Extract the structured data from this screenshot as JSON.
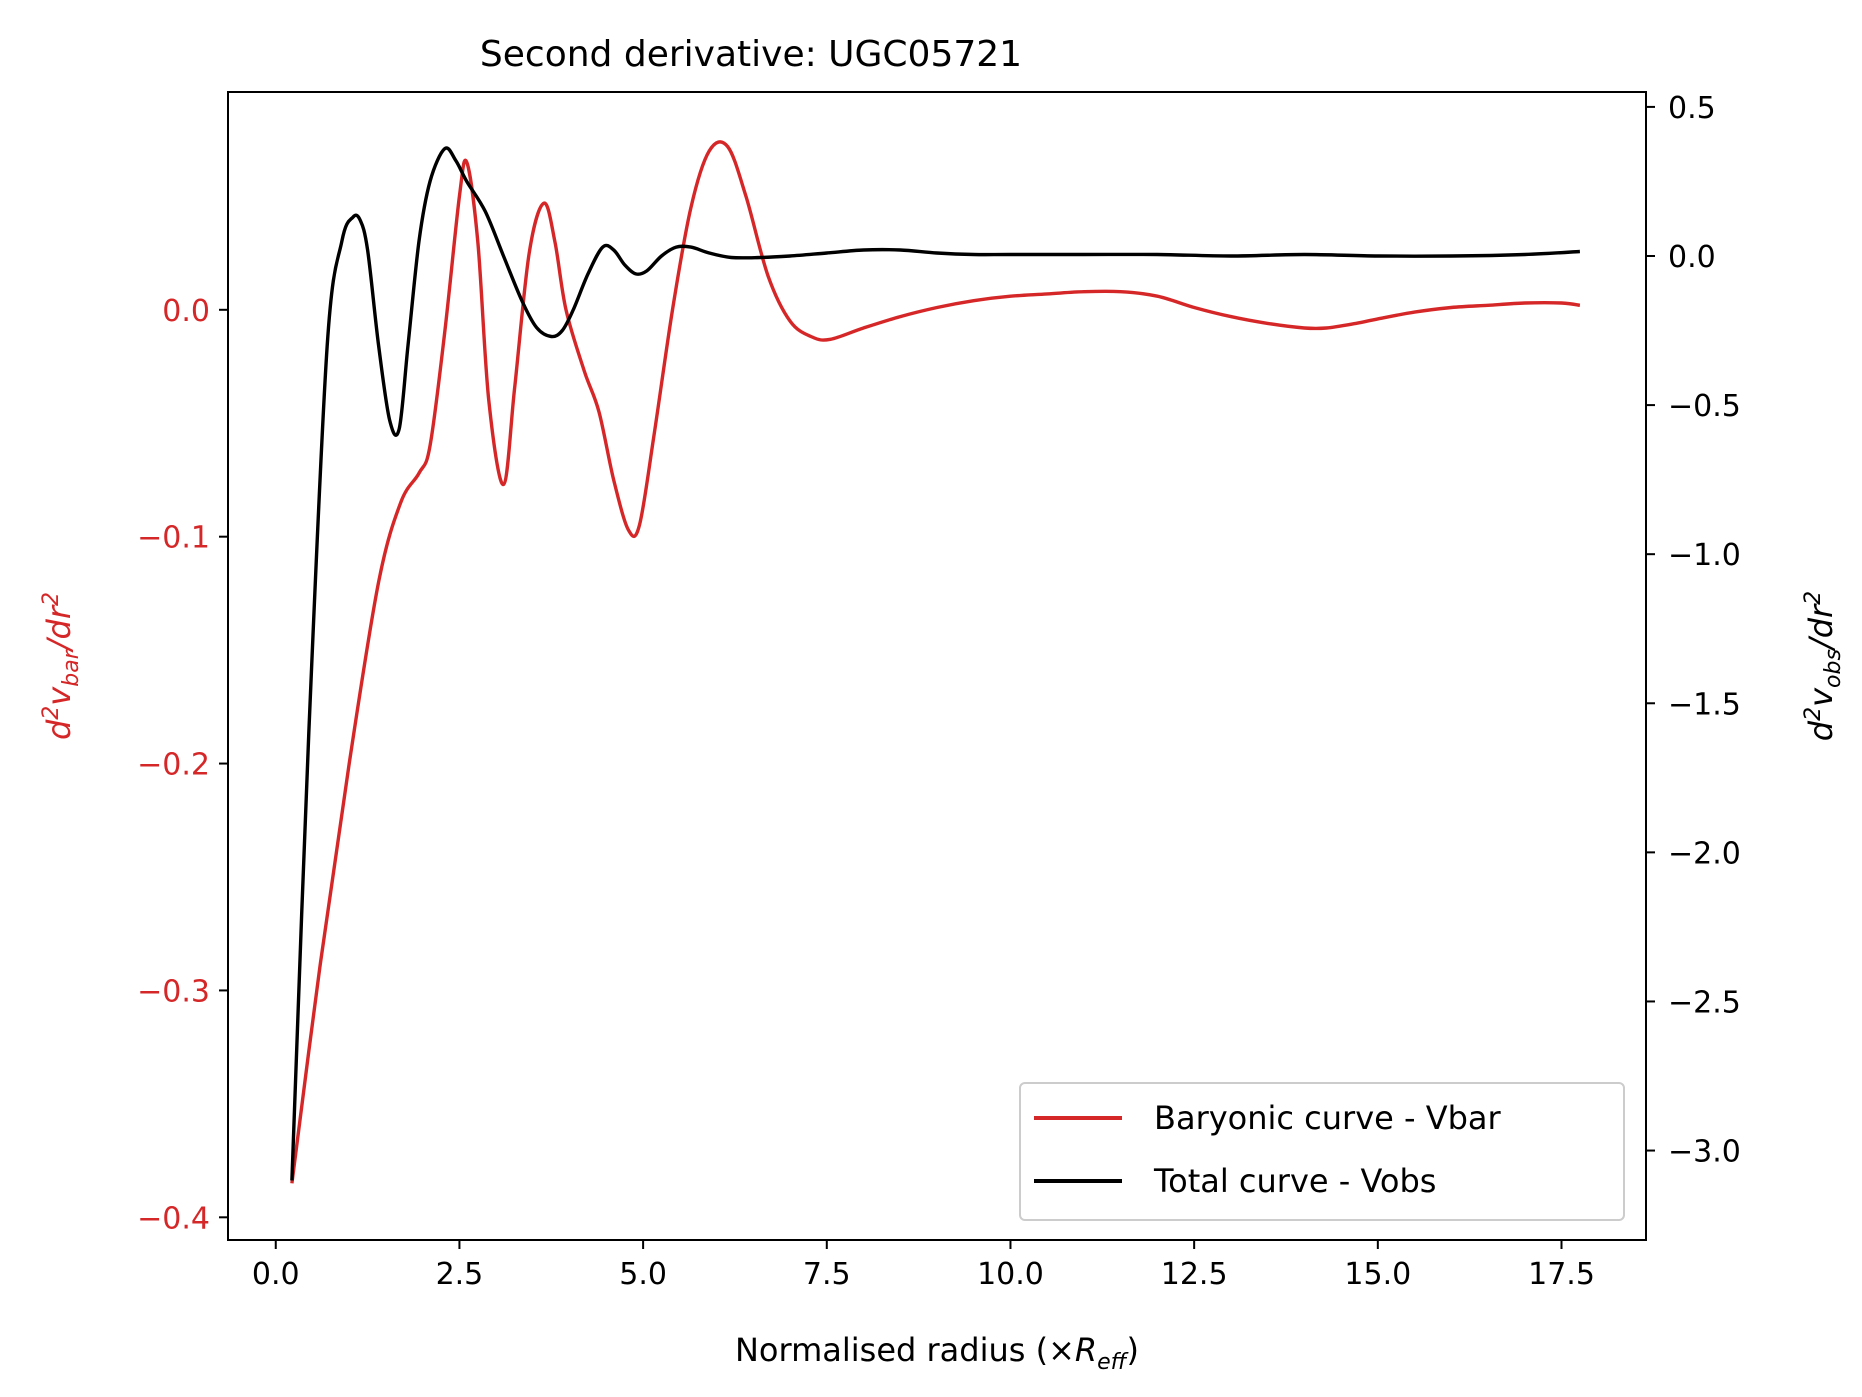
{
  "chart_data": {
    "type": "line",
    "title": "Second derivative: UGC05721",
    "xlabel": {
      "main": "Normalised radius (×",
      "symbol": "R",
      "sub": "eff",
      "close": ")"
    },
    "ylabel_left": {
      "prefix": "d",
      "sup1": "2",
      "v": "v",
      "sub": "bar",
      "slash": "/dr",
      "sup2": "2"
    },
    "ylabel_right": {
      "prefix": "d",
      "sup1": "2",
      "v": "v",
      "sub": "obs",
      "slash": "/dr",
      "sup2": "2"
    },
    "xlim": [
      -0.65,
      18.65
    ],
    "ylim_left": [
      -0.41,
      0.096
    ],
    "ylim_right": [
      -3.3,
      0.55
    ],
    "grid": false,
    "legend_position": "lower-right",
    "x_ticks": [
      0.0,
      2.5,
      5.0,
      7.5,
      10.0,
      12.5,
      15.0,
      17.5
    ],
    "x_tick_labels": [
      "0.0",
      "2.5",
      "5.0",
      "7.5",
      "10.0",
      "12.5",
      "15.0",
      "17.5"
    ],
    "y_left_ticks": [
      0.0,
      -0.1,
      -0.2,
      -0.3,
      -0.4
    ],
    "y_left_tick_labels": [
      "0.0",
      "−0.1",
      "−0.2",
      "−0.3",
      "−0.4"
    ],
    "y_right_ticks": [
      0.5,
      0.0,
      -0.5,
      -1.0,
      -1.5,
      -2.0,
      -2.5,
      -3.0
    ],
    "y_right_tick_labels": [
      "0.5",
      "0.0",
      "−0.5",
      "−1.0",
      "−1.5",
      "−2.0",
      "−2.5",
      "−3.0"
    ],
    "left_axis_color": "#d62728",
    "series": [
      {
        "name": "Baryonic curve - Vbar",
        "axis": "left",
        "color": "#d62728",
        "x": [
          0.22,
          0.6,
          1.0,
          1.4,
          1.7,
          1.95,
          2.1,
          2.3,
          2.5,
          2.6,
          2.75,
          2.9,
          3.1,
          3.25,
          3.45,
          3.65,
          3.8,
          3.95,
          4.2,
          4.4,
          4.6,
          4.8,
          4.95,
          5.15,
          5.4,
          5.65,
          5.9,
          6.15,
          6.4,
          6.7,
          7.0,
          7.3,
          7.55,
          8.0,
          8.5,
          9.0,
          9.5,
          10.0,
          10.5,
          11.0,
          11.5,
          12.0,
          12.5,
          13.0,
          13.5,
          14.0,
          14.3,
          14.7,
          15.0,
          15.5,
          16.0,
          16.5,
          17.0,
          17.5,
          17.75
        ],
        "y": [
          -0.385,
          -0.29,
          -0.2,
          -0.12,
          -0.085,
          -0.072,
          -0.06,
          -0.01,
          0.05,
          0.065,
          0.03,
          -0.04,
          -0.077,
          -0.035,
          0.025,
          0.047,
          0.03,
          0.0,
          -0.027,
          -0.045,
          -0.075,
          -0.097,
          -0.095,
          -0.055,
          0.0,
          0.045,
          0.07,
          0.072,
          0.05,
          0.015,
          -0.005,
          -0.012,
          -0.013,
          -0.008,
          -0.003,
          0.001,
          0.004,
          0.006,
          0.007,
          0.008,
          0.008,
          0.006,
          0.001,
          -0.003,
          -0.006,
          -0.008,
          -0.008,
          -0.006,
          -0.004,
          -0.001,
          0.001,
          0.002,
          0.003,
          0.003,
          0.002
        ]
      },
      {
        "name": "Total curve - Vobs",
        "axis": "right",
        "color": "#000000",
        "x": [
          0.22,
          0.45,
          0.7,
          0.9,
          1.05,
          1.15,
          1.25,
          1.4,
          1.55,
          1.68,
          1.8,
          1.95,
          2.1,
          2.3,
          2.45,
          2.6,
          2.85,
          3.1,
          3.35,
          3.55,
          3.75,
          3.9,
          4.05,
          4.25,
          4.45,
          4.6,
          4.75,
          4.9,
          5.05,
          5.25,
          5.45,
          5.65,
          5.9,
          6.2,
          6.6,
          7.0,
          7.5,
          8.0,
          8.5,
          9.0,
          9.5,
          10.0,
          11.0,
          12.0,
          13.0,
          14.0,
          15.0,
          16.0,
          17.0,
          17.75
        ],
        "y": [
          -3.1,
          -1.6,
          -0.3,
          0.05,
          0.13,
          0.12,
          0.02,
          -0.3,
          -0.55,
          -0.58,
          -0.3,
          0.05,
          0.25,
          0.36,
          0.32,
          0.25,
          0.15,
          0.0,
          -0.15,
          -0.24,
          -0.27,
          -0.25,
          -0.18,
          -0.06,
          0.03,
          0.02,
          -0.03,
          -0.06,
          -0.05,
          0.0,
          0.03,
          0.03,
          0.01,
          -0.005,
          -0.005,
          0.0,
          0.01,
          0.02,
          0.02,
          0.01,
          0.005,
          0.005,
          0.005,
          0.005,
          0.0,
          0.005,
          0.0,
          0.0,
          0.005,
          0.015
        ]
      }
    ]
  }
}
